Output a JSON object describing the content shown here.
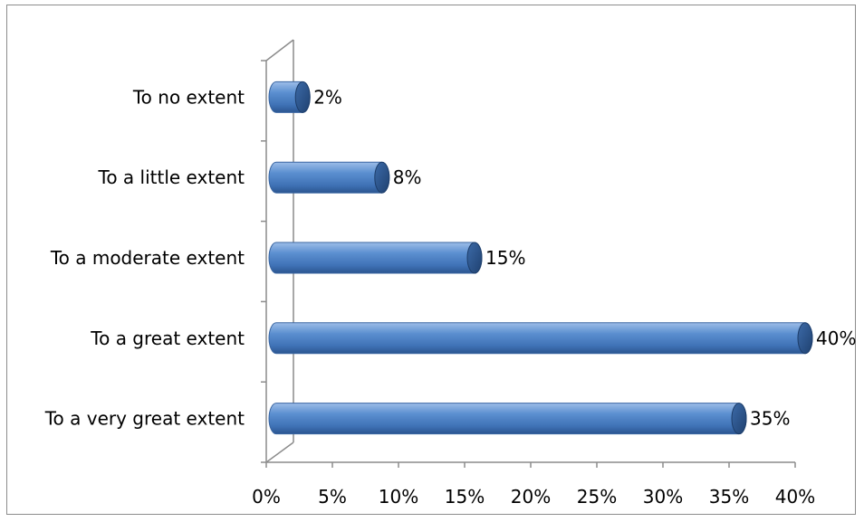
{
  "chart_data": {
    "type": "bar",
    "orientation": "horizontal",
    "style": "3d-cylinder",
    "categories": [
      "To no extent",
      "To a little extent",
      "To a moderate extent",
      "To a great extent",
      "To a very great extent"
    ],
    "values": [
      2,
      8,
      15,
      40,
      35
    ],
    "data_labels": [
      "2%",
      "8%",
      "15%",
      "40%",
      "35%"
    ],
    "xlim": [
      0,
      40
    ],
    "x_ticks": [
      0,
      5,
      10,
      15,
      20,
      25,
      30,
      35,
      40
    ],
    "x_tick_labels": [
      "0%",
      "5%",
      "10%",
      "15%",
      "20%",
      "25%",
      "30%",
      "35%",
      "40%"
    ],
    "grid": false,
    "legend": "none",
    "colors": {
      "bar_light": "#8db3e2",
      "bar_mid": "#4f81bd",
      "bar_dark": "#254d84",
      "axis": "#8c8c8c"
    }
  }
}
